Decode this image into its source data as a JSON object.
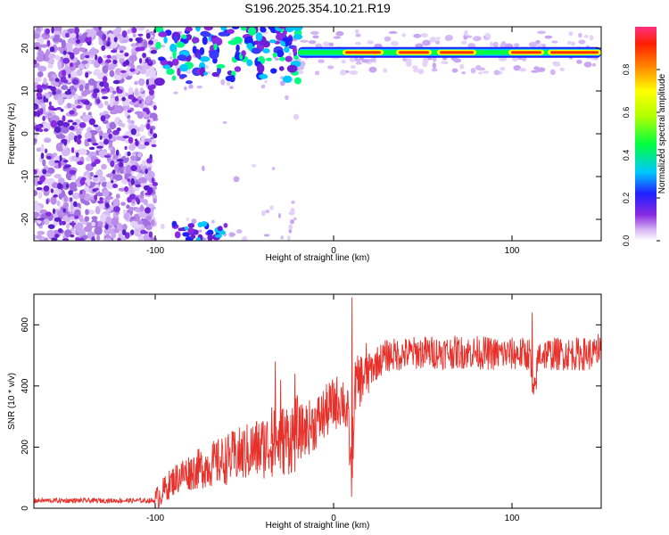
{
  "page_title": "S196.2025.354.10.21.R19",
  "chart_data": [
    {
      "type": "heatmap",
      "title": "S196.2025.354.10.21.R19",
      "xlabel": "Height of straight line (km)",
      "ylabel": "Frequency (Hz)",
      "xlim": [
        -168,
        150
      ],
      "ylim": [
        -25,
        25
      ],
      "x_ticks": [
        -100,
        0,
        100
      ],
      "y_ticks": [
        -20,
        -10,
        0,
        10,
        20
      ],
      "colorbar": {
        "label": "Normalized spectral amplitude",
        "ticks": [
          0.0,
          0.2,
          0.4,
          0.6,
          0.8
        ],
        "range": [
          0,
          1
        ]
      },
      "features": [
        {
          "name": "noise-band",
          "x_range": [
            -168,
            -100
          ],
          "freq_range": [
            -25,
            25
          ],
          "amplitude": 0.15
        },
        {
          "name": "onset-blobs",
          "x_range": [
            -100,
            -20
          ],
          "freq_range": [
            12,
            25
          ],
          "amplitude": 0.3
        },
        {
          "name": "low-blobs",
          "x_range": [
            -90,
            -60
          ],
          "freq_range": [
            -25,
            -21
          ],
          "amplitude": 0.2
        },
        {
          "name": "tone-track",
          "x_range": [
            -20,
            150
          ],
          "freq": 19,
          "amplitude": 0.95
        }
      ]
    },
    {
      "type": "line",
      "xlabel": "Height of straight line (km)",
      "ylabel": "SNR (10 * v/v)",
      "xlim": [
        -168,
        150
      ],
      "ylim": [
        0,
        700
      ],
      "x_ticks": [
        -100,
        0,
        100
      ],
      "y_ticks": [
        0,
        200,
        400,
        600
      ],
      "series": [
        {
          "name": "SNR",
          "color": "#e8302a",
          "x": [
            -168,
            -150,
            -130,
            -110,
            -100,
            -95,
            -90,
            -85,
            -80,
            -75,
            -70,
            -65,
            -60,
            -55,
            -50,
            -45,
            -40,
            -35,
            -30,
            -25,
            -20,
            -15,
            -10,
            -5,
            0,
            5,
            8,
            10,
            12,
            15,
            20,
            25,
            30,
            40,
            50,
            60,
            70,
            80,
            90,
            100,
            110,
            112,
            115,
            120,
            130,
            140,
            150
          ],
          "values": [
            25,
            25,
            25,
            25,
            25,
            60,
            90,
            110,
            120,
            130,
            140,
            150,
            160,
            170,
            180,
            190,
            200,
            210,
            220,
            230,
            245,
            260,
            280,
            310,
            340,
            360,
            300,
            100,
            400,
            420,
            450,
            480,
            500,
            505,
            510,
            510,
            510,
            510,
            505,
            505,
            505,
            350,
            505,
            505,
            505,
            505,
            505
          ],
          "spikes": [
            {
              "x": -35,
              "value": 330
            },
            {
              "x": -33,
              "value": 480
            },
            {
              "x": -30,
              "value": 420
            },
            {
              "x": -22,
              "value": 440
            },
            {
              "x": 10,
              "value": 690
            },
            {
              "x": 18,
              "value": 540
            },
            {
              "x": 111,
              "value": 640
            },
            {
              "x": 148,
              "value": 570
            }
          ]
        }
      ]
    }
  ]
}
